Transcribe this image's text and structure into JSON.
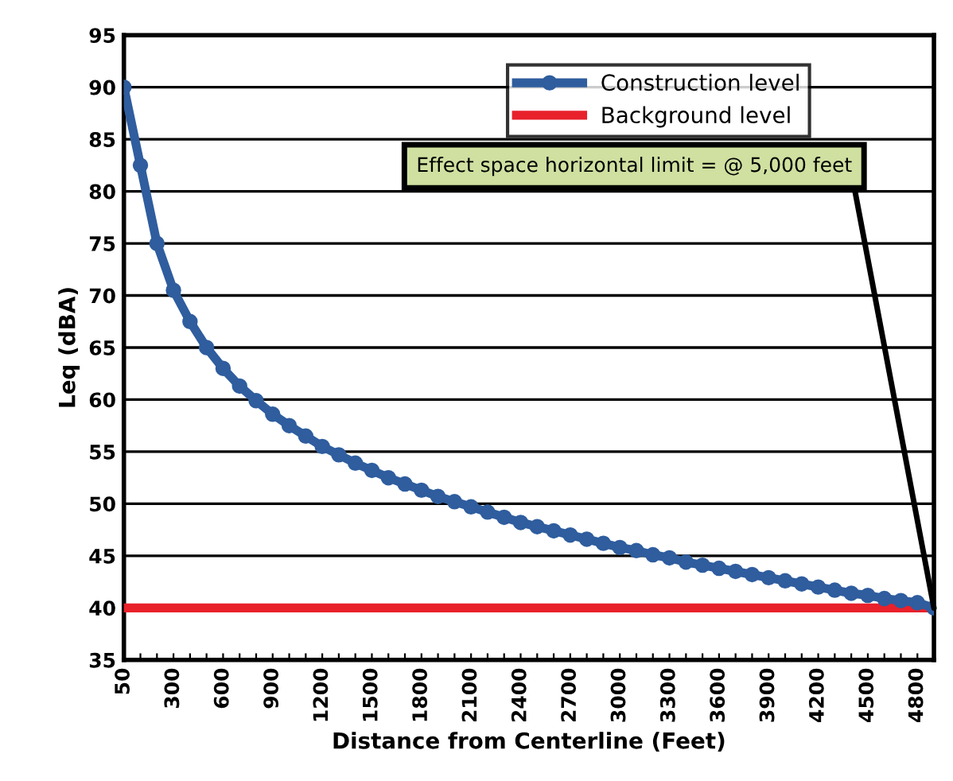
{
  "chart_data": {
    "type": "line",
    "xlabel": "Distance from Centerline (Feet)",
    "ylabel": "Leq (dBA)",
    "categories": [
      "50",
      null,
      null,
      "300",
      null,
      null,
      "600",
      null,
      null,
      "900",
      null,
      null,
      "1200",
      null,
      null,
      "1500",
      null,
      null,
      "1800",
      null,
      null,
      "2100",
      null,
      null,
      "2400",
      null,
      null,
      "2700",
      null,
      null,
      "3000",
      null,
      null,
      "3300",
      null,
      null,
      "3600",
      null,
      null,
      "3900",
      null,
      null,
      "4200",
      null,
      null,
      "4500",
      null,
      null,
      "4800",
      null
    ],
    "series": [
      {
        "name": "Construction level",
        "color": "#2f5d9e",
        "marker": "circle",
        "values": [
          90,
          82.5,
          75,
          70.5,
          67.5,
          65,
          63,
          61.3,
          59.9,
          58.6,
          57.5,
          56.5,
          55.5,
          54.7,
          53.9,
          53.2,
          52.5,
          51.9,
          51.3,
          50.7,
          50.2,
          49.7,
          49.2,
          48.7,
          48.2,
          47.8,
          47.4,
          47.0,
          46.6,
          46.2,
          45.8,
          45.5,
          45.1,
          44.8,
          44.4,
          44.1,
          43.8,
          43.5,
          43.2,
          42.9,
          42.6,
          42.3,
          42.0,
          41.7,
          41.4,
          41.2,
          40.9,
          40.7,
          40.5,
          40.0
        ]
      },
      {
        "name": "Background level",
        "color": "#e8212b",
        "marker": "none",
        "values": [
          40,
          40,
          40,
          40,
          40,
          40,
          40,
          40,
          40,
          40,
          40,
          40,
          40,
          40,
          40,
          40,
          40,
          40,
          40,
          40,
          40,
          40,
          40,
          40,
          40,
          40,
          40,
          40,
          40,
          40,
          40,
          40,
          40,
          40,
          40,
          40,
          40,
          40,
          40,
          40,
          40,
          40,
          40,
          40,
          40,
          40,
          40,
          40,
          40,
          40
        ]
      }
    ],
    "ylim": [
      35,
      95
    ],
    "yticks": [
      35,
      40,
      45,
      50,
      55,
      60,
      65,
      70,
      75,
      80,
      85,
      90,
      95
    ],
    "grid": "y",
    "legend": "top right",
    "annotations": [
      "Effect space horizontal limit = @ 5,000 feet"
    ]
  }
}
